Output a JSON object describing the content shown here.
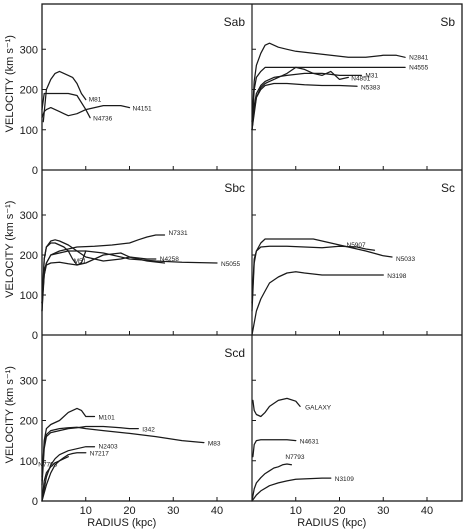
{
  "chart_data": {
    "type": "line",
    "shared_xlabel": "RADIUS (kpc)",
    "shared_ylabel": "VELOCITY (km s⁻¹)",
    "xlim": [
      0,
      48
    ],
    "ylim": [
      0,
      400
    ],
    "xticks": [
      10,
      20,
      30,
      40
    ],
    "yticks": [
      0,
      100,
      200,
      300
    ],
    "panels": [
      {
        "label": "Sab",
        "series": [
          {
            "name": "M81",
            "x": [
              0.3,
              1,
              2,
              3,
              4,
              5,
              6,
              7,
              8,
              9,
              10
            ],
            "y": [
              120,
              200,
              225,
              240,
              245,
              240,
              235,
              230,
              215,
              190,
              175
            ]
          },
          {
            "name": "N4736",
            "x": [
              0,
              0.5,
              1,
              2,
              4,
              6,
              8,
              10,
              11
            ],
            "y": [
              150,
              190,
              190,
              190,
              190,
              190,
              185,
              150,
              130
            ]
          },
          {
            "name": "N4151",
            "x": [
              0,
              0.5,
              1,
              2,
              3,
              4,
              5,
              6,
              8,
              10,
              14,
              18,
              20
            ],
            "y": [
              130,
              145,
              150,
              155,
              150,
              145,
              140,
              135,
              140,
              150,
              160,
              160,
              155
            ]
          }
        ]
      },
      {
        "label": "Sb",
        "series": [
          {
            "name": "N2841",
            "x": [
              0,
              0.5,
              1,
              2,
              3,
              4,
              6,
              8,
              10,
              14,
              18,
              22,
              26,
              30,
              33,
              35
            ],
            "y": [
              120,
              220,
              260,
              290,
              310,
              315,
              305,
              300,
              295,
              290,
              285,
              280,
              280,
              285,
              285,
              280
            ]
          },
          {
            "name": "N4555",
            "x": [
              0,
              0.5,
              1,
              2,
              3,
              4,
              6,
              10,
              20,
              30,
              35
            ],
            "y": [
              100,
              200,
              230,
              245,
              255,
              255,
              255,
              255,
              255,
              255,
              255
            ]
          },
          {
            "name": "M31",
            "x": [
              0,
              0.5,
              1,
              2,
              3,
              5,
              8,
              12,
              16,
              20,
              23,
              25
            ],
            "y": [
              100,
              160,
              190,
              210,
              220,
              230,
              235,
              240,
              240,
              235,
              235,
              235
            ]
          },
          {
            "name": "N4851",
            "x": [
              0,
              0.5,
              1,
              2,
              3,
              4,
              6,
              8,
              10,
              12,
              14,
              16,
              18,
              20,
              22
            ],
            "y": [
              100,
              150,
              180,
              205,
              215,
              220,
              230,
              240,
              255,
              250,
              240,
              235,
              245,
              225,
              230
            ]
          },
          {
            "name": "N5383",
            "x": [
              0,
              1,
              2,
              3,
              5,
              8,
              12,
              16,
              20,
              24
            ],
            "y": [
              100,
              180,
              200,
              210,
              215,
              215,
              212,
              210,
              210,
              208
            ]
          }
        ]
      },
      {
        "label": "Sbc",
        "series": [
          {
            "name": "N7331",
            "x": [
              0,
              0.5,
              1,
              2,
              4,
              8,
              12,
              16,
              20,
              22,
              24,
              26,
              28
            ],
            "y": [
              80,
              150,
              180,
              200,
              210,
              220,
              222,
              225,
              230,
              238,
              245,
              250,
              250
            ]
          },
          {
            "name": "N4258",
            "x": [
              0,
              0.5,
              1,
              2,
              3,
              4,
              6,
              8,
              10,
              14,
              18,
              20,
              24,
              26
            ],
            "y": [
              80,
              190,
              220,
              235,
              238,
              235,
              225,
              210,
              195,
              185,
              190,
              195,
              190,
              190
            ]
          },
          {
            "name": "N5055",
            "x": [
              0,
              0.5,
              1,
              2,
              4,
              6,
              10,
              14,
              20,
              26,
              32,
              40
            ],
            "y": [
              80,
              160,
              180,
              200,
              205,
              210,
              210,
              205,
              190,
              185,
              182,
              180
            ]
          },
          {
            "name": "M51",
            "x": [
              0,
              0.5,
              1,
              2,
              3,
              4,
              5,
              6,
              7,
              8,
              9,
              10
            ],
            "y": [
              60,
              190,
              220,
              230,
              230,
              225,
              220,
              210,
              190,
              175,
              180,
              210
            ]
          },
          {
            "name": "",
            "x": [
              0,
              0.5,
              1,
              2,
              4,
              6,
              8,
              10,
              14,
              18,
              20,
              24,
              28
            ],
            "y": [
              60,
              150,
              175,
              180,
              182,
              178,
              175,
              180,
              200,
              205,
              195,
              185,
              180
            ]
          }
        ]
      },
      {
        "label": "Sc",
        "series": [
          {
            "name": "N5907",
            "x": [
              0,
              0.5,
              1,
              2,
              4,
              8,
              12,
              16,
              20,
              24,
              26,
              28
            ],
            "y": [
              60,
              180,
              210,
              220,
              222,
              222,
              220,
              218,
              222,
              220,
              215,
              212
            ]
          },
          {
            "name": "N5033",
            "x": [
              0,
              0.5,
              1,
              2,
              3,
              6,
              10,
              14,
              18,
              22,
              26,
              30,
              32
            ],
            "y": [
              80,
              190,
              210,
              230,
              240,
              240,
              240,
              240,
              230,
              220,
              210,
              198,
              195
            ]
          },
          {
            "name": "N3198",
            "x": [
              0,
              1,
              2,
              3,
              4,
              6,
              8,
              10,
              12,
              16,
              20,
              24,
              28,
              30
            ],
            "y": [
              0,
              60,
              90,
              110,
              130,
              145,
              155,
              158,
              155,
              150,
              150,
              150,
              150,
              150
            ]
          }
        ]
      },
      {
        "label": "Scd",
        "series": [
          {
            "name": "M101",
            "x": [
              0,
              0.5,
              1,
              2,
              4,
              6,
              8,
              9,
              10,
              11,
              12
            ],
            "y": [
              50,
              150,
              180,
              190,
              200,
              220,
              230,
              225,
              210,
              210,
              210
            ]
          },
          {
            "name": "I342",
            "x": [
              0,
              0.5,
              1,
              2,
              4,
              6,
              8,
              10,
              14,
              18,
              20,
              22
            ],
            "y": [
              40,
              130,
              160,
              170,
              175,
              180,
              182,
              185,
              185,
              182,
              180,
              180
            ]
          },
          {
            "name": "M83",
            "x": [
              0,
              0.5,
              1,
              2,
              4,
              6,
              8,
              10,
              14,
              20,
              26,
              32,
              37
            ],
            "y": [
              60,
              140,
              165,
              175,
              180,
              182,
              183,
              180,
              175,
              168,
              160,
              150,
              145
            ]
          },
          {
            "name": "N2403",
            "x": [
              0,
              1,
              2,
              3,
              4,
              6,
              8,
              10,
              12
            ],
            "y": [
              0,
              60,
              90,
              105,
              115,
              125,
              130,
              135,
              135
            ]
          },
          {
            "name": "N7793",
            "x": [
              0,
              0.5,
              1,
              2,
              3,
              4,
              5,
              6
            ],
            "y": [
              0,
              50,
              70,
              85,
              95,
              100,
              105,
              110
            ]
          },
          {
            "name": "N7217",
            "x": [
              0,
              1,
              2,
              3,
              4,
              5,
              6,
              7,
              8,
              9,
              10
            ],
            "y": [
              0,
              40,
              70,
              90,
              100,
              108,
              115,
              118,
              120,
              120,
              120
            ]
          }
        ]
      },
      {
        "label": "",
        "series": [
          {
            "name": "GALAXY",
            "x": [
              0.2,
              0.5,
              1,
              2,
              3,
              4,
              6,
              8,
              10,
              11
            ],
            "y": [
              250,
              225,
              215,
              210,
              220,
              235,
              250,
              255,
              248,
              235
            ]
          },
          {
            "name": "N4631",
            "x": [
              0.2,
              0.5,
              1,
              2,
              4,
              6,
              8,
              10
            ],
            "y": [
              110,
              140,
              150,
              152,
              152,
              152,
              152,
              150
            ]
          },
          {
            "name": "N7793",
            "x": [
              0,
              0.5,
              1,
              2,
              3,
              4,
              5,
              6,
              7,
              8,
              9
            ],
            "y": [
              0,
              30,
              45,
              58,
              68,
              75,
              82,
              85,
              90,
              92,
              90
            ]
          },
          {
            "name": "N3109",
            "x": [
              0,
              1,
              2,
              4,
              6,
              8,
              10,
              12,
              14,
              16,
              18
            ],
            "y": [
              0,
              15,
              25,
              38,
              45,
              50,
              54,
              55,
              56,
              57,
              57
            ]
          }
        ]
      }
    ]
  }
}
